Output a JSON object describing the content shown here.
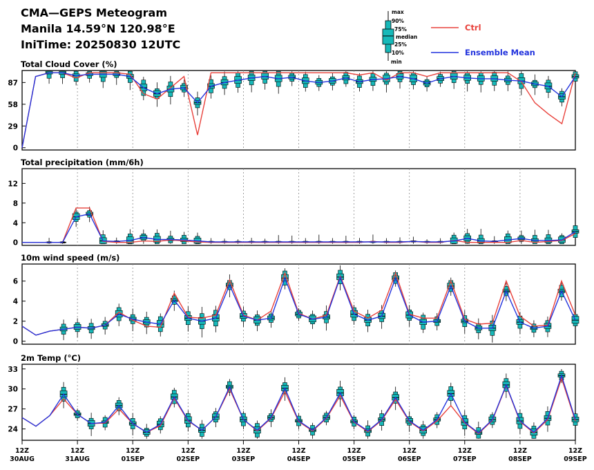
{
  "header": {
    "title": "CMA—GEPS Meteogram",
    "location": "Manila 14.59°N 120.98°E",
    "init_time": "IniTime: 20250830 12UTC"
  },
  "legend": {
    "box_labels": [
      "max",
      "90%",
      "75%",
      "median",
      "25%",
      "10%",
      "min"
    ],
    "ctrl_label": "Ctrl",
    "mean_label": "Ensemble Mean",
    "colors": {
      "ctrl": "#e8403a",
      "mean": "#2233dd",
      "box": "#17b9b9"
    }
  },
  "x_axis": {
    "hour_labels": [
      "12Z",
      "12Z",
      "12Z",
      "12Z",
      "12Z",
      "12Z",
      "12Z",
      "12Z",
      "12Z",
      "12Z",
      "12Z"
    ],
    "date_labels": [
      "30AUG",
      "31AUG",
      "01SEP",
      "02SEP",
      "03SEP",
      "04SEP",
      "05SEP",
      "06SEP",
      "07SEP",
      "08SEP",
      "09SEP"
    ]
  },
  "chart_data": [
    {
      "type": "box-line",
      "title": "Total Cloud Cover (%)",
      "ylim": [
        -3,
        103
      ],
      "yticks": [
        0,
        29,
        58,
        87
      ],
      "ctrl": [
        0,
        95,
        100,
        100,
        93,
        100,
        100,
        100,
        98,
        72,
        65,
        80,
        95,
        17,
        100,
        100,
        100,
        100,
        100,
        100,
        100,
        100,
        100,
        100,
        100,
        97,
        100,
        90,
        100,
        100,
        95,
        100,
        100,
        100,
        100,
        100,
        100,
        88,
        60,
        45,
        32,
        100
      ],
      "mean": [
        0,
        95,
        100,
        100,
        96,
        98,
        98,
        98,
        95,
        80,
        72,
        78,
        80,
        60,
        82,
        87,
        90,
        93,
        95,
        92,
        94,
        89,
        87,
        89,
        93,
        88,
        91,
        92,
        95,
        92,
        86,
        92,
        95,
        93,
        92,
        92,
        90,
        89,
        85,
        82,
        68,
        95
      ],
      "box_starts": 2,
      "box_every": 1
    },
    {
      "type": "box-line",
      "title": "Total precipitation (mm/6h)",
      "ylim": [
        -0.6,
        15
      ],
      "yticks": [
        0,
        4,
        8,
        12
      ],
      "ctrl": [
        0,
        0,
        0,
        0,
        7,
        7,
        0.2,
        0,
        0,
        0.3,
        0.2,
        0.5,
        0.3,
        0.1,
        0,
        0,
        0,
        0,
        0,
        0,
        0,
        0,
        0,
        0,
        0,
        0,
        0.2,
        0,
        0,
        0.2,
        0,
        0,
        0.4,
        0,
        0,
        0,
        0,
        0.4,
        0,
        0.2,
        0.4,
        1.8
      ],
      "mean": [
        0,
        0,
        0,
        0,
        5.2,
        5.8,
        0.3,
        0.2,
        0.4,
        1,
        0.6,
        0.6,
        0.5,
        0.3,
        0.1,
        0.1,
        0.1,
        0.1,
        0.1,
        0.1,
        0.1,
        0.1,
        0.1,
        0.1,
        0.1,
        0.1,
        0.1,
        0.1,
        0.1,
        0.2,
        0.1,
        0.1,
        0.3,
        0.8,
        0.3,
        0.2,
        0.5,
        0.8,
        0.4,
        0.4,
        0.5,
        2.2
      ],
      "box_starts": 2,
      "box_every": 1
    },
    {
      "type": "box-line",
      "title": "10m wind speed (m/s)",
      "ylim": [
        -0.3,
        7.7
      ],
      "yticks": [
        0,
        2,
        4,
        6
      ],
      "ctrl": [
        1.5,
        0.6,
        1.0,
        1.2,
        1.4,
        1.3,
        1.6,
        2.9,
        2.1,
        1.5,
        1.4,
        4.8,
        2.4,
        2.3,
        2.6,
        6.1,
        2.6,
        2.1,
        3.0,
        6.8,
        2.8,
        2.2,
        2.6,
        6.5,
        3.0,
        2.3,
        3.1,
        6.8,
        2.7,
        2.3,
        2.3,
        6.0,
        2.2,
        1.7,
        1.8,
        6.0,
        2.5,
        1.5,
        1.6,
        6.0,
        2.6
      ],
      "mean": [
        1.5,
        0.6,
        1.0,
        1.2,
        1.4,
        1.3,
        1.6,
        2.7,
        2.2,
        1.9,
        1.7,
        4.1,
        2.3,
        2.0,
        2.3,
        5.6,
        2.5,
        2.1,
        2.3,
        6.3,
        2.7,
        2.2,
        2.4,
        6.4,
        2.7,
        2.1,
        2.5,
        6.3,
        2.6,
        1.9,
        2.0,
        5.5,
        2.0,
        1.3,
        1.3,
        5.0,
        1.9,
        1.3,
        1.5,
        5.0,
        2.1
      ],
      "box_starts": 3,
      "box_every": 1
    },
    {
      "type": "box-line",
      "title": "2m Temp (°C)",
      "ylim": [
        22.3,
        33.7
      ],
      "yticks": [
        24,
        27,
        30,
        33
      ],
      "ctrl": [
        25.7,
        24.4,
        26.0,
        28.5,
        26.2,
        24.8,
        24.9,
        27.0,
        24.8,
        23.5,
        24.5,
        28.6,
        25.2,
        23.8,
        25.8,
        30.0,
        25.4,
        23.7,
        25.6,
        29.6,
        25.1,
        23.7,
        25.6,
        29.0,
        25.0,
        23.6,
        25.3,
        28.4,
        25.1,
        23.7,
        25.2,
        27.5,
        24.9,
        23.3,
        25.3,
        30.5,
        25.1,
        23.4,
        25.4,
        31.6,
        25.2
      ],
      "mean": [
        25.7,
        24.4,
        26.0,
        29.2,
        26.2,
        24.8,
        25.0,
        27.5,
        24.8,
        23.5,
        24.7,
        28.8,
        25.3,
        23.8,
        25.8,
        30.3,
        25.4,
        23.8,
        25.7,
        30.1,
        25.2,
        23.8,
        25.7,
        29.4,
        25.1,
        23.7,
        25.4,
        28.7,
        25.2,
        23.8,
        25.4,
        29.3,
        25.0,
        23.4,
        25.4,
        30.6,
        25.2,
        23.5,
        25.6,
        32.0,
        25.4
      ],
      "box_starts": 3,
      "box_every": 1
    }
  ]
}
